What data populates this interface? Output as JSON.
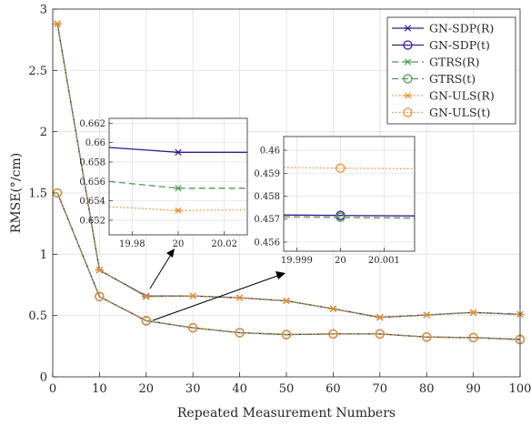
{
  "chart_data": {
    "type": "line",
    "xlabel": "Repeated Measurement Numbers",
    "ylabel": "RMSE(°/cm)",
    "xlim": [
      0,
      100
    ],
    "ylim": [
      0,
      3
    ],
    "x_ticks": [
      0,
      10,
      20,
      30,
      40,
      50,
      60,
      70,
      80,
      90,
      100
    ],
    "y_ticks": [
      0,
      0.5,
      1,
      1.5,
      2,
      2.5,
      3
    ],
    "grid": true,
    "legend_position": "top-right",
    "x": [
      1,
      10,
      20,
      30,
      40,
      50,
      60,
      70,
      80,
      90,
      100
    ],
    "series": [
      {
        "name": "GN-SDP(R)",
        "color": "#3a1a8c",
        "dash": "solid",
        "marker": "asterisk",
        "values": [
          2.88,
          0.87,
          0.659,
          0.66,
          0.645,
          0.62,
          0.555,
          0.485,
          0.505,
          0.525,
          0.51
        ]
      },
      {
        "name": "GN-SDP(t)",
        "color": "#3a1a8c",
        "dash": "solid",
        "marker": "circle",
        "values": [
          1.5,
          0.655,
          0.4572,
          0.4,
          0.36,
          0.345,
          0.35,
          0.35,
          0.325,
          0.32,
          0.305
        ]
      },
      {
        "name": "GTRS(R)",
        "color": "#4f9a4f",
        "dash": "dashed",
        "marker": "asterisk",
        "values": [
          2.88,
          0.87,
          0.6553,
          0.66,
          0.645,
          0.62,
          0.555,
          0.485,
          0.505,
          0.525,
          0.51
        ]
      },
      {
        "name": "GTRS(t)",
        "color": "#4f9a4f",
        "dash": "dashed",
        "marker": "circle",
        "values": [
          1.5,
          0.655,
          0.4571,
          0.4,
          0.36,
          0.345,
          0.35,
          0.35,
          0.325,
          0.32,
          0.305
        ]
      },
      {
        "name": "GN-ULS(R)",
        "color": "#f28c28",
        "dash": "dotted",
        "marker": "asterisk",
        "values": [
          2.88,
          0.87,
          0.653,
          0.66,
          0.645,
          0.62,
          0.555,
          0.485,
          0.505,
          0.525,
          0.51
        ]
      },
      {
        "name": "GN-ULS(t)",
        "color": "#f28c28",
        "dash": "dotted",
        "marker": "circle",
        "values": [
          1.5,
          0.655,
          0.4592,
          0.4,
          0.36,
          0.345,
          0.35,
          0.35,
          0.325,
          0.32,
          0.305
        ]
      }
    ],
    "insets": [
      {
        "xlim": [
          19.97,
          20.03
        ],
        "ylim": [
          0.6505,
          0.6625
        ],
        "x_ticks": [
          19.98,
          20,
          20.02
        ],
        "x_tick_labels": [
          "19.98",
          "20",
          "20.02"
        ],
        "y_ticks": [
          0.652,
          0.654,
          0.656,
          0.658,
          0.66,
          0.662
        ],
        "y_tick_labels": [
          "0.652",
          "0.654",
          "0.656",
          "0.658",
          "0.66",
          "0.662"
        ],
        "series": [
          {
            "ref": 0,
            "points": [
              [
                19.97,
                0.6595
              ],
              [
                20,
                0.659
              ],
              [
                20.03,
                0.659
              ]
            ]
          },
          {
            "ref": 2,
            "points": [
              [
                19.97,
                0.656
              ],
              [
                20,
                0.6553
              ],
              [
                20.03,
                0.6553
              ]
            ]
          },
          {
            "ref": 4,
            "points": [
              [
                19.97,
                0.6534
              ],
              [
                20,
                0.653
              ],
              [
                20.03,
                0.6531
              ]
            ]
          }
        ]
      },
      {
        "xlim": [
          19.9987,
          20.0017
        ],
        "ylim": [
          0.4556,
          0.4606
        ],
        "x_ticks": [
          19.999,
          20,
          20.001
        ],
        "x_tick_labels": [
          "19.999",
          "20",
          "20.001"
        ],
        "y_ticks": [
          0.456,
          0.457,
          0.458,
          0.459,
          0.46
        ],
        "y_tick_labels": [
          "0.456",
          "0.457",
          "0.458",
          "0.459",
          "0.46"
        ],
        "series": [
          {
            "ref": 1,
            "points": [
              [
                19.9987,
                0.45718
              ],
              [
                20,
                0.45716
              ],
              [
                20.0017,
                0.45714
              ]
            ]
          },
          {
            "ref": 3,
            "points": [
              [
                19.9987,
                0.4571
              ],
              [
                20,
                0.45708
              ],
              [
                20.0017,
                0.45705
              ]
            ]
          },
          {
            "ref": 5,
            "points": [
              [
                19.9987,
                0.45925
              ],
              [
                20,
                0.45922
              ],
              [
                20.0017,
                0.4592
              ]
            ]
          }
        ]
      }
    ]
  }
}
